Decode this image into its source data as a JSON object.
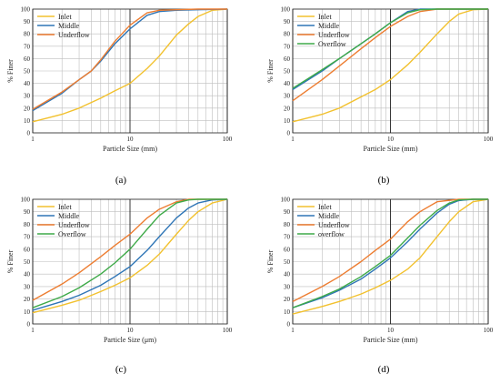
{
  "colors": {
    "Inlet": "#f2c12e",
    "Middle": "#2e75b6",
    "Underflow": "#ed7d31",
    "Overflow": "#3eaa48"
  },
  "chart_data": [
    {
      "panel": "(a)",
      "type": "line",
      "xscale": "log",
      "xlim": [
        1,
        100
      ],
      "ylim": [
        0,
        100
      ],
      "xticks": [
        "1",
        "10",
        "100"
      ],
      "yticks": [
        0,
        10,
        20,
        30,
        40,
        50,
        60,
        70,
        80,
        90,
        100
      ],
      "xlabel": "Particle Size (mm)",
      "ylabel": "% Finer",
      "legend_position": "top-left",
      "series": [
        {
          "name": "Inlet",
          "color": "#f2c12e",
          "x": [
            1,
            2,
            3,
            5,
            7,
            10,
            15,
            20,
            30,
            40,
            50,
            70,
            100
          ],
          "y": [
            9,
            15,
            20,
            28,
            34,
            40,
            52,
            62,
            79,
            88,
            94,
            99,
            100
          ]
        },
        {
          "name": "Middle",
          "color": "#2e75b6",
          "x": [
            1,
            2,
            3,
            4,
            5,
            7,
            10,
            15,
            20,
            30,
            50,
            100
          ],
          "y": [
            18,
            32,
            43,
            50,
            58,
            72,
            84,
            95,
            98,
            99,
            99.5,
            100
          ]
        },
        {
          "name": "Underflow",
          "color": "#ed7d31",
          "x": [
            1,
            2,
            3,
            4,
            5,
            7,
            10,
            15,
            20,
            30,
            50,
            100
          ],
          "y": [
            19,
            33,
            43,
            50,
            59,
            74,
            87,
            97,
            99,
            99.5,
            100,
            100
          ]
        }
      ]
    },
    {
      "panel": "(b)",
      "type": "line",
      "xscale": "log",
      "xlim": [
        1,
        100
      ],
      "ylim": [
        0,
        100
      ],
      "xticks": [
        "1",
        "10",
        "100"
      ],
      "yticks": [
        0,
        10,
        20,
        30,
        40,
        50,
        60,
        70,
        80,
        90,
        100
      ],
      "xlabel": "Particle Size (mm)",
      "ylabel": "% Finer",
      "legend_position": "top-left",
      "series": [
        {
          "name": "Inlet",
          "color": "#f2c12e",
          "x": [
            1,
            2,
            3,
            5,
            7,
            10,
            15,
            20,
            30,
            40,
            50,
            70,
            100
          ],
          "y": [
            9,
            15,
            20,
            29,
            35,
            43,
            55,
            65,
            80,
            90,
            96,
            99.5,
            100
          ]
        },
        {
          "name": "Middle",
          "color": "#2e75b6",
          "x": [
            1,
            2,
            3,
            5,
            7,
            10,
            15,
            20,
            30,
            100
          ],
          "y": [
            35,
            50,
            60,
            72,
            80,
            89,
            98,
            100,
            100,
            100
          ]
        },
        {
          "name": "Underflow",
          "color": "#ed7d31",
          "x": [
            1,
            2,
            3,
            5,
            7,
            10,
            15,
            20,
            30,
            100
          ],
          "y": [
            26,
            43,
            54,
            68,
            77,
            86,
            94,
            98,
            100,
            100
          ]
        },
        {
          "name": "Overflow",
          "color": "#3eaa48",
          "x": [
            1,
            2,
            3,
            5,
            7,
            10,
            15,
            20,
            30,
            100
          ],
          "y": [
            36,
            51,
            60,
            72,
            80,
            89,
            97,
            99.5,
            100,
            100
          ]
        }
      ]
    },
    {
      "panel": "(c)",
      "type": "line",
      "xscale": "log",
      "xlim": [
        1,
        100
      ],
      "ylim": [
        0,
        100
      ],
      "xticks": [
        "1",
        "10",
        "100"
      ],
      "yticks": [
        0,
        10,
        20,
        30,
        40,
        50,
        60,
        70,
        80,
        90,
        100
      ],
      "xlabel": "Particle Size (μm)",
      "ylabel": "% Finer",
      "legend_position": "top-left",
      "series": [
        {
          "name": "Inlet",
          "color": "#f2c12e",
          "x": [
            1,
            2,
            3,
            5,
            7,
            10,
            15,
            20,
            30,
            40,
            50,
            70,
            100
          ],
          "y": [
            9,
            15,
            19,
            26,
            31,
            37,
            47,
            56,
            72,
            83,
            90,
            97,
            100
          ]
        },
        {
          "name": "Middle",
          "color": "#2e75b6",
          "x": [
            1,
            2,
            3,
            5,
            7,
            10,
            15,
            20,
            30,
            40,
            50,
            70,
            100
          ],
          "y": [
            11,
            18,
            23,
            31,
            38,
            46,
            59,
            70,
            85,
            93,
            97,
            99.5,
            100
          ]
        },
        {
          "name": "Underflow",
          "color": "#ed7d31",
          "x": [
            1,
            2,
            3,
            5,
            7,
            10,
            15,
            20,
            30,
            40,
            50,
            100
          ],
          "y": [
            19,
            32,
            41,
            54,
            63,
            72,
            85,
            92,
            98,
            100,
            100,
            100
          ]
        },
        {
          "name": "Overflow",
          "color": "#3eaa48",
          "x": [
            1,
            2,
            3,
            5,
            7,
            10,
            15,
            20,
            30,
            40,
            50,
            100
          ],
          "y": [
            13,
            22,
            29,
            40,
            49,
            60,
            76,
            87,
            97,
            99.5,
            100,
            100
          ]
        }
      ]
    },
    {
      "panel": "(d)",
      "type": "line",
      "xscale": "log",
      "xlim": [
        1,
        100
      ],
      "ylim": [
        0,
        100
      ],
      "xticks": [
        "1",
        "10",
        "100"
      ],
      "yticks": [
        0,
        10,
        20,
        30,
        40,
        50,
        60,
        70,
        80,
        90,
        100
      ],
      "xlabel": "Particle Size (mm)",
      "ylabel": "% Finer",
      "legend_position": "top-left",
      "series": [
        {
          "name": "Inlet",
          "color": "#f2c12e",
          "x": [
            1,
            2,
            3,
            5,
            7,
            10,
            15,
            20,
            30,
            40,
            50,
            70,
            100
          ],
          "y": [
            8,
            14,
            18,
            24,
            29,
            35,
            44,
            53,
            70,
            82,
            90,
            98,
            100
          ]
        },
        {
          "name": "Middle",
          "color": "#2e75b6",
          "x": [
            1,
            2,
            3,
            5,
            7,
            10,
            15,
            20,
            30,
            40,
            50,
            70,
            100
          ],
          "y": [
            13,
            21,
            27,
            36,
            44,
            53,
            66,
            76,
            89,
            96,
            99,
            100,
            100
          ]
        },
        {
          "name": "Underflow",
          "color": "#ed7d31",
          "x": [
            1,
            2,
            3,
            5,
            7,
            10,
            15,
            20,
            30,
            50,
            100
          ],
          "y": [
            18,
            30,
            38,
            50,
            59,
            68,
            82,
            90,
            98,
            100,
            100
          ]
        },
        {
          "name": "overflow",
          "color": "#3eaa48",
          "x": [
            1,
            2,
            3,
            5,
            7,
            10,
            15,
            20,
            30,
            40,
            50,
            70,
            100
          ],
          "y": [
            13,
            22,
            28,
            38,
            46,
            55,
            69,
            79,
            91,
            97,
            99.5,
            100,
            100
          ]
        }
      ]
    }
  ]
}
